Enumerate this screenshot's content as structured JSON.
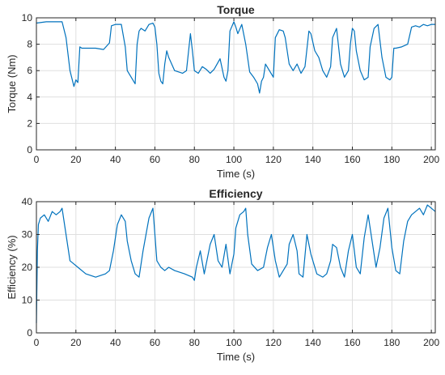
{
  "chart_data": [
    {
      "type": "line",
      "title": "Torque",
      "xlabel": "Time (s)",
      "ylabel": "Torque (Nm)",
      "xlim": [
        0,
        202
      ],
      "ylim": [
        0,
        10
      ],
      "xticks": [
        "0",
        "20",
        "40",
        "60",
        "80",
        "100",
        "120",
        "140",
        "160",
        "180",
        "200"
      ],
      "yticks": [
        "0",
        "2",
        "4",
        "6",
        "8",
        "10"
      ],
      "grid": true,
      "color": "#0072BD",
      "series": [
        {
          "x": [
            0,
            5,
            10,
            13,
            15,
            17,
            19,
            20,
            21,
            22,
            23,
            30,
            34,
            37,
            38,
            40,
            43,
            45,
            46,
            48,
            50,
            51,
            52,
            53,
            55,
            57,
            59,
            60,
            61,
            62,
            63,
            64,
            65,
            66,
            67,
            70,
            74,
            76,
            78,
            79,
            80,
            82,
            84,
            86,
            88,
            90,
            93,
            95,
            96,
            97,
            98,
            100,
            101,
            102,
            104,
            106,
            108,
            110,
            112,
            113,
            114,
            115,
            116,
            118,
            120,
            121,
            123,
            125,
            126,
            128,
            130,
            132,
            134,
            136,
            138,
            139,
            141,
            143,
            145,
            147,
            149,
            150,
            152,
            154,
            156,
            158,
            159,
            160,
            161,
            162,
            164,
            166,
            168,
            169,
            171,
            173,
            175,
            177,
            179,
            180,
            181,
            182,
            185,
            188,
            190,
            192,
            194,
            196,
            198,
            200,
            202
          ],
          "y": [
            9.6,
            9.7,
            9.7,
            9.7,
            8.5,
            6.0,
            4.8,
            5.3,
            5.1,
            7.8,
            7.7,
            7.7,
            7.6,
            8.1,
            9.4,
            9.5,
            9.5,
            7.8,
            6.0,
            5.5,
            5.0,
            8.0,
            9.0,
            9.2,
            9.0,
            9.5,
            9.6,
            9.3,
            8.0,
            5.8,
            5.2,
            5.0,
            6.5,
            7.5,
            7.0,
            6.0,
            5.8,
            6.0,
            8.8,
            7.5,
            6.0,
            5.8,
            6.3,
            6.1,
            5.8,
            6.1,
            6.9,
            5.5,
            5.2,
            6.0,
            9.0,
            9.7,
            9.3,
            8.8,
            9.5,
            8.0,
            5.9,
            5.5,
            5.0,
            4.3,
            5.2,
            5.5,
            6.5,
            6.0,
            5.5,
            8.5,
            9.1,
            9.0,
            8.5,
            6.5,
            6.0,
            6.5,
            5.8,
            6.3,
            9.0,
            8.8,
            7.5,
            7.0,
            6.0,
            5.5,
            6.3,
            8.5,
            9.2,
            6.5,
            5.5,
            6.0,
            8.0,
            9.2,
            9.0,
            7.5,
            6.0,
            5.3,
            5.5,
            7.8,
            9.2,
            9.5,
            7.0,
            5.5,
            5.3,
            5.5,
            7.7,
            7.7,
            7.8,
            8.0,
            9.3,
            9.4,
            9.3,
            9.5,
            9.4,
            9.5,
            9.5
          ]
        }
      ]
    },
    {
      "type": "line",
      "title": "Efficiency",
      "xlabel": "Time (s)",
      "ylabel": "Efficiency (%)",
      "xlim": [
        0,
        202
      ],
      "ylim": [
        0,
        40
      ],
      "xticks": [
        "0",
        "20",
        "40",
        "60",
        "80",
        "100",
        "120",
        "140",
        "160",
        "180",
        "200"
      ],
      "yticks": [
        "0",
        "10",
        "20",
        "30",
        "40"
      ],
      "grid": true,
      "color": "#0072BD",
      "series": [
        {
          "x": [
            0,
            0.5,
            1,
            2,
            4,
            6,
            8,
            10,
            12,
            13,
            15,
            17,
            19,
            21,
            25,
            30,
            35,
            37,
            39,
            41,
            43,
            45,
            46,
            48,
            50,
            52,
            54,
            57,
            59,
            60,
            61,
            63,
            65,
            67,
            70,
            75,
            79,
            80,
            81,
            83,
            85,
            88,
            90,
            92,
            94,
            96,
            98,
            100,
            101,
            103,
            105,
            106,
            107,
            109,
            112,
            115,
            117,
            119,
            121,
            123,
            125,
            127,
            128,
            130,
            132,
            133,
            135,
            137,
            139,
            142,
            145,
            147,
            149,
            150,
            152,
            154,
            156,
            158,
            160,
            162,
            164,
            166,
            168,
            170,
            172,
            174,
            176,
            178,
            180,
            182,
            184,
            186,
            188,
            190,
            192,
            194,
            196,
            198,
            200,
            202
          ],
          "y": [
            3,
            25,
            33,
            35,
            36,
            34,
            37,
            36,
            37,
            38,
            30,
            22,
            21,
            20,
            18,
            17,
            18,
            19,
            25,
            33,
            36,
            34,
            28,
            22,
            18,
            17,
            25,
            35,
            38,
            30,
            22,
            20,
            19,
            20,
            19,
            18,
            17,
            16,
            20,
            25,
            18,
            27,
            30,
            22,
            20,
            27,
            18,
            24,
            32,
            36,
            37,
            38,
            30,
            21,
            19,
            20,
            26,
            30,
            22,
            17,
            19,
            21,
            27,
            30,
            25,
            18,
            17,
            30,
            24,
            18,
            17,
            18,
            22,
            27,
            26,
            20,
            17,
            25,
            30,
            20,
            18,
            29,
            36,
            28,
            20,
            26,
            35,
            38,
            26,
            19,
            18,
            28,
            34,
            36,
            37,
            38,
            36,
            39,
            38,
            37
          ]
        }
      ]
    }
  ]
}
